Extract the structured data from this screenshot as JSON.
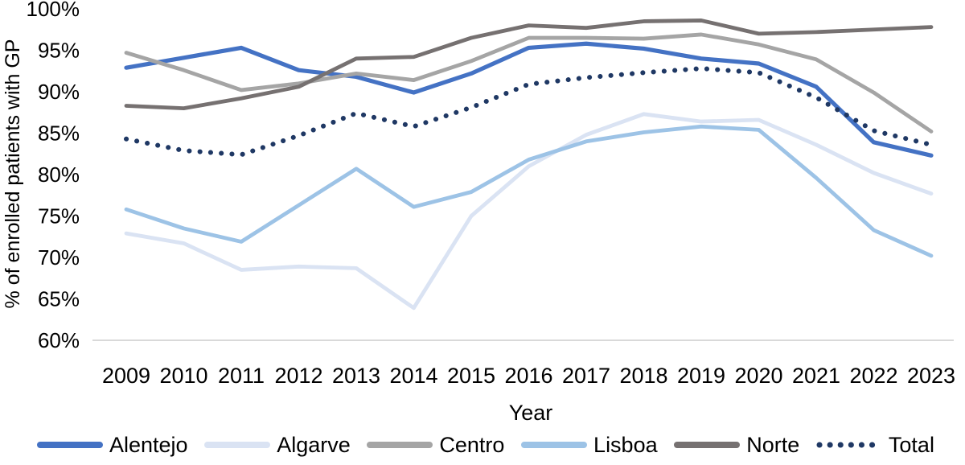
{
  "chart_data": {
    "type": "line",
    "title": "",
    "xlabel": "Year",
    "ylabel": "% of enrolled patients with GP",
    "x": [
      "2009",
      "2010",
      "2011",
      "2012",
      "2013",
      "2014",
      "2015",
      "2016",
      "2017",
      "2018",
      "2019",
      "2020",
      "2021",
      "2022",
      "2023"
    ],
    "ylim": [
      60,
      100
    ],
    "ytick_step": 5,
    "yticks": [
      "60%",
      "65%",
      "70%",
      "75%",
      "80%",
      "85%",
      "90%",
      "95%",
      "100%"
    ],
    "grid": "baseline-only",
    "legend_position": "bottom",
    "series": [
      {
        "name": "Alentejo",
        "color": "#4472C4",
        "style": "solid",
        "values": [
          92.9,
          94.1,
          95.3,
          92.6,
          91.8,
          89.9,
          92.2,
          95.3,
          95.8,
          95.2,
          94.0,
          93.4,
          90.6,
          83.9,
          82.3
        ]
      },
      {
        "name": "Algarve",
        "color": "#DAE3F3",
        "style": "solid",
        "values": [
          72.9,
          71.7,
          68.5,
          68.9,
          68.7,
          63.9,
          75.0,
          81.0,
          84.8,
          87.3,
          86.4,
          86.6,
          83.6,
          80.2,
          77.7
        ]
      },
      {
        "name": "Centro",
        "color": "#A5A5A5",
        "style": "solid",
        "values": [
          94.7,
          92.6,
          90.2,
          91.0,
          92.2,
          91.4,
          93.7,
          96.5,
          96.5,
          96.4,
          96.9,
          95.7,
          93.9,
          89.9,
          85.2
        ]
      },
      {
        "name": "Lisboa",
        "color": "#9DC3E6",
        "style": "solid",
        "values": [
          75.8,
          73.5,
          71.9,
          76.3,
          80.7,
          76.1,
          77.9,
          81.8,
          84.0,
          85.1,
          85.8,
          85.4,
          79.6,
          73.3,
          70.2
        ]
      },
      {
        "name": "Norte",
        "color": "#767171",
        "style": "solid",
        "values": [
          88.3,
          88.0,
          89.2,
          90.6,
          94.0,
          94.2,
          96.5,
          98.0,
          97.7,
          98.5,
          98.6,
          97.0,
          97.2,
          97.5,
          97.8
        ]
      },
      {
        "name": "Total",
        "color": "#1F3864",
        "style": "dotted",
        "values": [
          84.3,
          82.9,
          82.4,
          84.7,
          87.4,
          85.8,
          88.1,
          90.9,
          91.7,
          92.3,
          92.8,
          92.3,
          89.3,
          85.3,
          83.6
        ]
      }
    ]
  },
  "colors": {
    "background": "#ffffff",
    "axis_text": "#000000",
    "gridline": "#d9d9d9"
  }
}
